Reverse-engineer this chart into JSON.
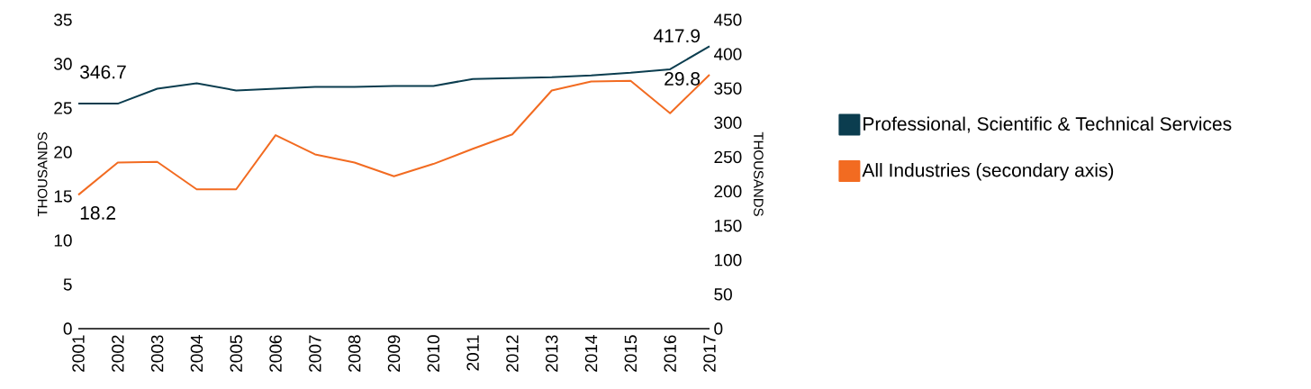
{
  "chart_data": {
    "type": "line",
    "categories": [
      "2001",
      "2002",
      "2003",
      "2004",
      "2005",
      "2006",
      "2007",
      "2008",
      "2009",
      "2010",
      "2011",
      "2012",
      "2013",
      "2014",
      "2015",
      "2016",
      "2017"
    ],
    "ylabel": "THOUSANDS",
    "y2label": "THOUSANDS",
    "ylim": [
      0,
      35
    ],
    "yticks": [
      0,
      5,
      10,
      15,
      20,
      25,
      30,
      35
    ],
    "y2lim": [
      0,
      450
    ],
    "y2ticks": [
      0,
      50,
      100,
      150,
      200,
      250,
      300,
      350,
      400,
      450
    ],
    "series": [
      {
        "name": "Professional, Scientific & Technical Services",
        "color": "#0b3d4f",
        "values": [
          25.5,
          25.5,
          27.2,
          27.8,
          27.0,
          27.2,
          27.4,
          27.4,
          27.5,
          27.5,
          28.3,
          28.4,
          28.5,
          28.7,
          29.0,
          29.4,
          32.0
        ]
      },
      {
        "name": "All Industries (secondary axis)",
        "color": "#f26b21",
        "axis": "y2",
        "values": [
          195,
          242,
          243,
          203,
          203,
          282,
          254,
          242,
          222,
          240,
          262,
          283,
          347,
          360,
          361,
          314,
          370
        ]
      }
    ],
    "annotations": [
      "346.7",
      "18.2",
      "417.9",
      "29.8"
    ],
    "legend": "right",
    "grid": false,
    "marker": "none",
    "line_style": "solid"
  }
}
